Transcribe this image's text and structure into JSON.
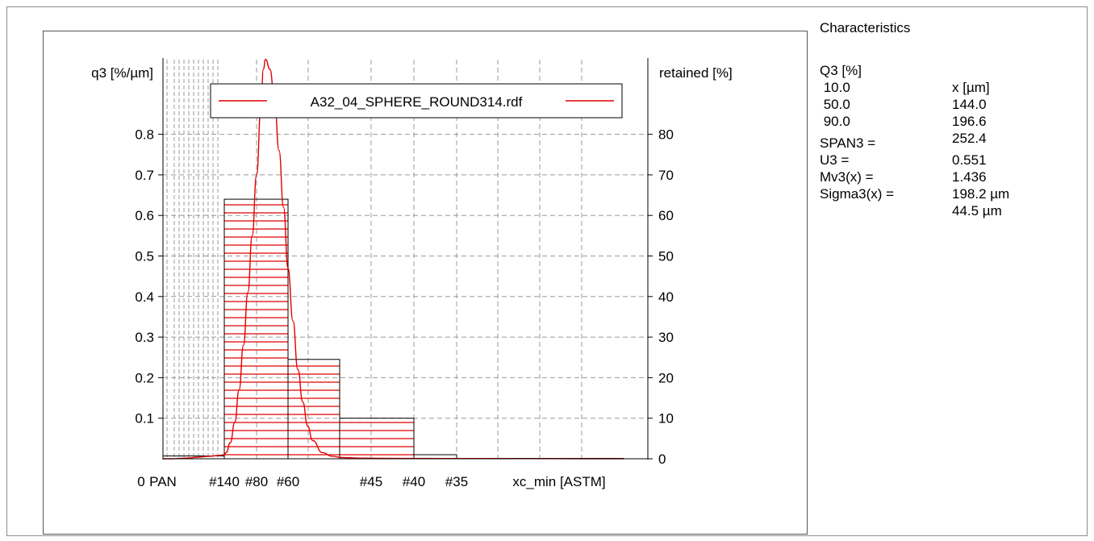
{
  "chart_data": {
    "type": "bar",
    "left_axis_label": "q3 [%/µm]",
    "right_axis_label": "retained [%]",
    "x_axis_label": "xc_min [ASTM]",
    "left_ticks": [
      "0.1",
      "0.2",
      "0.3",
      "0.4",
      "0.5",
      "0.6",
      "0.7",
      "0.8"
    ],
    "right_ticks": [
      "0",
      "10",
      "20",
      "30",
      "40",
      "50",
      "60",
      "70",
      "80"
    ],
    "x_ticks": [
      "0",
      "PAN",
      "#140",
      "#80",
      "#60",
      "#45",
      "#40",
      "#35"
    ],
    "legend_entry": "A32_04_SPHERE_ROUND314.rdf",
    "legend_placement": "top",
    "grid": true,
    "series_color": "#e00000",
    "retained_bars": [
      {
        "from": "PAN",
        "to": "#140",
        "retained_percent": 0.7
      },
      {
        "from": "#140",
        "to": "#80",
        "retained_percent": 64
      },
      {
        "from": "#80",
        "to": "#60",
        "retained_percent": 24.5
      },
      {
        "from": "#60",
        "to": "#45",
        "retained_percent": 10
      },
      {
        "from": "#45",
        "to": "#40",
        "retained_percent": 1
      },
      {
        "from": "#40",
        "to": "#35",
        "retained_percent": 0.1
      }
    ],
    "density_curve": {
      "name": "A32_04_SPHERE_ROUND314.rdf",
      "x_um": [
        0,
        20,
        40,
        60,
        80,
        90,
        100,
        106,
        110,
        120,
        130,
        140,
        150,
        160,
        170,
        180,
        190,
        195,
        200,
        210,
        220,
        230,
        240,
        250,
        260,
        270,
        280,
        290,
        300,
        320,
        340,
        360,
        400,
        450,
        500,
        600,
        700,
        800
      ],
      "q3_per_um": [
        0,
        0,
        0.0008,
        0.0018,
        0.004,
        0.006,
        0.008,
        0.01,
        0.015,
        0.04,
        0.09,
        0.17,
        0.28,
        0.41,
        0.55,
        0.7,
        0.87,
        0.96,
        0.985,
        0.96,
        0.88,
        0.76,
        0.62,
        0.47,
        0.34,
        0.22,
        0.14,
        0.08,
        0.045,
        0.015,
        0.006,
        0.003,
        0.0015,
        0.001,
        0.0008,
        0.0005,
        0.0003,
        0.0001
      ]
    }
  },
  "characteristics": {
    "title": "Characteristics",
    "header": [
      "Q3 [%]",
      "x [µm]"
    ],
    "rows": [
      [
        " 10.0",
        "144.0"
      ],
      [
        " 50.0",
        "196.6"
      ],
      [
        " 90.0",
        "252.4"
      ]
    ],
    "stats": [
      [
        "SPAN3 =",
        "0.551"
      ],
      [
        "U3 =",
        "1.436"
      ],
      [
        "Mv3(x) =",
        "198.2 µm"
      ],
      [
        "Sigma3(x) =",
        "44.5 µm"
      ]
    ]
  }
}
